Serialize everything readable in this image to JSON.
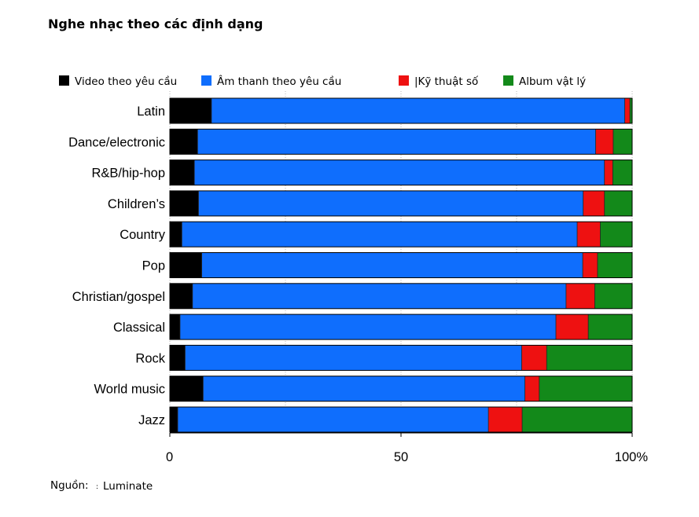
{
  "chart_data": {
    "type": "bar",
    "orientation": "horizontal",
    "stacked": true,
    "title": "Nghe nhạc theo các định dạng",
    "xlim": [
      0,
      100
    ],
    "x_ticks": [
      "0",
      "50",
      "100%"
    ],
    "grid": true,
    "legend_placement": "top",
    "categories": [
      "Latin",
      "Dance/electronic",
      "R&B/hip-hop",
      "Children’s",
      "Country",
      "Pop",
      "Christian/gospel",
      "Classical",
      "Rock",
      "World music",
      "Jazz"
    ],
    "series": [
      {
        "name": "Video theo yêu cầu",
        "color": "#000000",
        "values": [
          9.0,
          6.0,
          5.3,
          6.2,
          2.6,
          6.9,
          4.9,
          2.2,
          3.3,
          7.2,
          1.7
        ]
      },
      {
        "name": "Âm thanh theo yêu cầu",
        "color": "#0f6efd",
        "values": [
          89.4,
          86.1,
          88.7,
          83.2,
          85.5,
          82.4,
          80.8,
          81.3,
          72.8,
          69.6,
          67.2
        ]
      },
      {
        "name": "|Kỹ thuật số",
        "color": "#ee1111",
        "values": [
          1.1,
          3.8,
          1.8,
          4.6,
          5.0,
          3.2,
          6.2,
          7.0,
          5.4,
          3.1,
          7.3
        ]
      },
      {
        "name": "Album vật lý",
        "color": "#13891a",
        "values": [
          0.5,
          4.1,
          4.2,
          6.0,
          6.9,
          7.5,
          8.1,
          9.5,
          18.5,
          20.1,
          23.8
        ]
      }
    ]
  },
  "source": {
    "label": "Nguồn:",
    "marker": ":",
    "value": "Luminate"
  }
}
